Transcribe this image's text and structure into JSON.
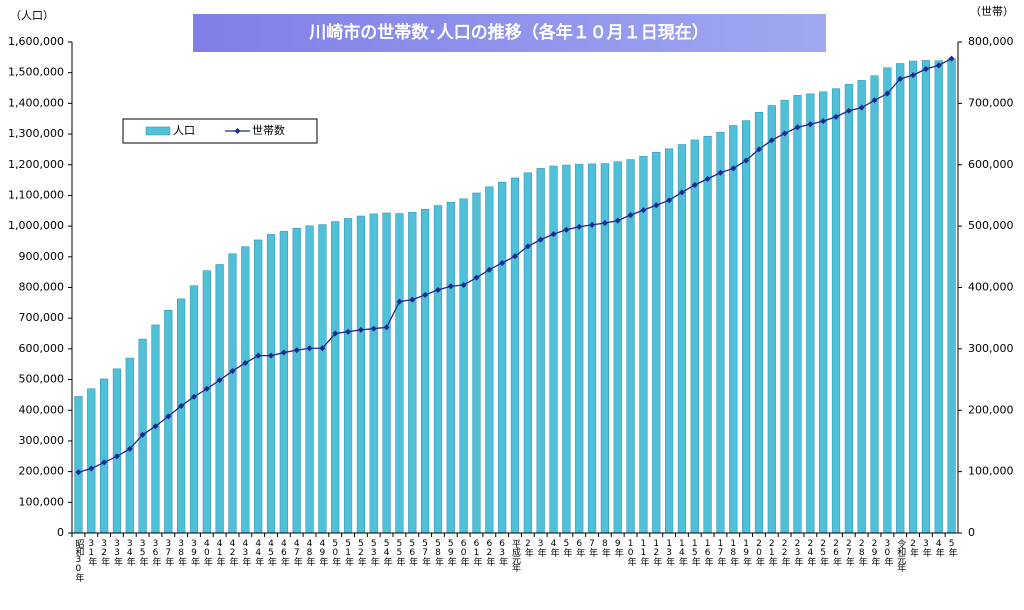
{
  "chart_data": {
    "type": "bar_line",
    "title": "川崎市の世帯数･人口の推移（各年１０月１日現在）",
    "y_label": "（人口）",
    "y2_label": "（世帯）",
    "categories": [
      "昭和30年",
      "31年",
      "32年",
      "33年",
      "34年",
      "35年",
      "36年",
      "37年",
      "38年",
      "39年",
      "40年",
      "41年",
      "42年",
      "43年",
      "44年",
      "45年",
      "46年",
      "47年",
      "48年",
      "49年",
      "50年",
      "51年",
      "52年",
      "53年",
      "54年",
      "55年",
      "56年",
      "57年",
      "58年",
      "59年",
      "60年",
      "61年",
      "62年",
      "63年",
      "平成元年",
      "2年",
      "3年",
      "4年",
      "5年",
      "6年",
      "7年",
      "8年",
      "9年",
      "10年",
      "11年",
      "12年",
      "13年",
      "14年",
      "15年",
      "16年",
      "17年",
      "18年",
      "19年",
      "20年",
      "21年",
      "22年",
      "23年",
      "24年",
      "25年",
      "26年",
      "27年",
      "28年",
      "29年",
      "30年",
      "令和元年",
      "2年",
      "3年",
      "4年",
      "5年"
    ],
    "series": [
      {
        "name": "人口",
        "type": "bar",
        "color": "#4fc0d8",
        "values": [
          445000,
          470000,
          502000,
          535000,
          570000,
          632000,
          678000,
          726000,
          763000,
          806000,
          855000,
          875000,
          910000,
          933000,
          955000,
          973000,
          983000,
          993000,
          1001000,
          1005000,
          1015000,
          1025000,
          1033000,
          1040000,
          1043000,
          1041000,
          1045000,
          1055000,
          1067000,
          1078000,
          1089000,
          1108000,
          1128000,
          1143000,
          1157000,
          1174000,
          1188000,
          1196000,
          1199000,
          1202000,
          1203000,
          1204000,
          1210000,
          1217000,
          1228000,
          1241000,
          1252000,
          1266000,
          1281000,
          1293000,
          1306000,
          1328000,
          1344000,
          1371000,
          1393000,
          1410000,
          1426000,
          1431000,
          1438000,
          1448000,
          1462000,
          1475000,
          1490000,
          1516000,
          1530000,
          1538000,
          1540000,
          1539000,
          1545000
        ]
      },
      {
        "name": "世帯数",
        "type": "line",
        "axis": "y2",
        "color": "#1c2a8c",
        "values": [
          99000,
          105000,
          115000,
          125000,
          137000,
          160000,
          174000,
          190000,
          207000,
          222000,
          235000,
          249000,
          264000,
          277000,
          289000,
          289000,
          294000,
          298000,
          301000,
          301000,
          325000,
          328000,
          331000,
          333000,
          335000,
          377000,
          380000,
          388000,
          396000,
          402000,
          404000,
          416000,
          429000,
          440000,
          451000,
          467000,
          478000,
          487000,
          494000,
          499000,
          502000,
          505000,
          509000,
          518000,
          526000,
          534000,
          542000,
          555000,
          567000,
          577000,
          587000,
          594000,
          607000,
          625000,
          640000,
          651000,
          661000,
          666000,
          671000,
          678000,
          688000,
          693000,
          705000,
          716000,
          740000,
          746000,
          756000,
          762000,
          773000
        ]
      }
    ],
    "ylim": [
      0,
      1600000
    ],
    "yticks": [
      0,
      {
        "value": 100000,
        "label": "100,000"
      },
      {
        "value": 200000,
        "label": "200,000"
      },
      {
        "value": 300000,
        "label": "300,000"
      },
      {
        "value": 400000,
        "label": "400,000"
      },
      {
        "value": 500000,
        "label": "500,000"
      },
      {
        "value": 600000,
        "label": "600,000"
      },
      {
        "value": 700000,
        "label": "700,000"
      },
      {
        "value": 800000,
        "label": "800,000"
      },
      {
        "value": 900000,
        "label": "900,000"
      },
      {
        "value": 1000000,
        "label": "1,000,000"
      },
      {
        "value": 1100000,
        "label": "1,100,000"
      },
      {
        "value": 1200000,
        "label": "1,200,000"
      },
      {
        "value": 1300000,
        "label": "1,300,000"
      },
      {
        "value": 1400000,
        "label": "1,400,000"
      },
      {
        "value": 1500000,
        "label": "1,500,000"
      },
      {
        "value": 1600000,
        "label": "1,600,000"
      }
    ],
    "y2lim": [
      0,
      800000
    ],
    "y2ticks": [
      0,
      {
        "value": 100000,
        "label": "100,000"
      },
      {
        "value": 200000,
        "label": "200,000"
      },
      {
        "value": 300000,
        "label": "300,000"
      },
      {
        "value": 400000,
        "label": "400,000"
      },
      {
        "value": 500000,
        "label": "500,000"
      },
      {
        "value": 600000,
        "label": "600,000"
      },
      {
        "value": 700000,
        "label": "700,000"
      },
      {
        "value": 800000,
        "label": "800,000"
      }
    ],
    "grid": false,
    "legend": "upper-left"
  }
}
